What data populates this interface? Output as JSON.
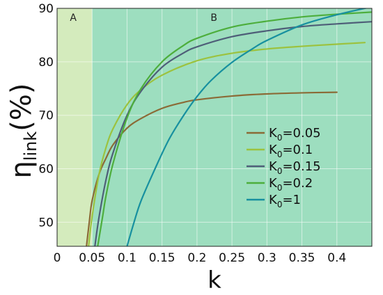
{
  "chart_data": {
    "type": "line",
    "xlabel": "k",
    "ylabel": {
      "main": "η",
      "sub": "link",
      "suffix": "(%)"
    },
    "xlim": [
      0,
      0.45
    ],
    "ylim": [
      45.5,
      90
    ],
    "x_ticks": [
      0,
      0.05,
      0.1,
      0.15,
      0.2,
      0.25,
      0.3,
      0.35,
      0.4
    ],
    "x_tick_labels": [
      "0",
      "0.05",
      "0.1",
      "0.15",
      "0.2",
      "0.25",
      "0.3",
      "0.35",
      "0.4"
    ],
    "y_ticks": [
      50,
      60,
      70,
      80,
      90
    ],
    "y_tick_labels": [
      "50",
      "60",
      "70",
      "80",
      "90"
    ],
    "grid": true,
    "legend_position": "right",
    "regions": [
      {
        "label": "A",
        "x_range": [
          0,
          0.05
        ],
        "color": "#d4ebbd"
      },
      {
        "label": "B",
        "x_range": [
          0.05,
          0.45
        ],
        "color": "#9ddebf"
      }
    ],
    "series": [
      {
        "name": "K0=0.05",
        "legend": {
          "base": "K",
          "sub": "0",
          "rest": "=0.05"
        },
        "color": "#8b6a36",
        "x": [
          0.042,
          0.046,
          0.05,
          0.06,
          0.07,
          0.08,
          0.1,
          0.12,
          0.15,
          0.18,
          0.2,
          0.25,
          0.3,
          0.35,
          0.4
        ],
        "y": [
          45.5,
          50,
          54,
          59,
          62,
          64.5,
          67.6,
          69.4,
          71.3,
          72.4,
          72.9,
          73.6,
          74.0,
          74.2,
          74.3
        ]
      },
      {
        "name": "K0=0.1",
        "legend": {
          "base": "K",
          "sub": "0",
          "rest": "=0.1"
        },
        "color": "#9cc23e",
        "x": [
          0.045,
          0.05,
          0.06,
          0.07,
          0.08,
          0.1,
          0.12,
          0.15,
          0.2,
          0.25,
          0.3,
          0.35,
          0.4,
          0.44
        ],
        "y": [
          45.5,
          51,
          59,
          64,
          67.5,
          72,
          74.8,
          77.5,
          80.2,
          81.6,
          82.4,
          82.9,
          83.3,
          83.6
        ]
      },
      {
        "name": "K0=0.15",
        "legend": {
          "base": "K",
          "sub": "0",
          "rest": "=0.15"
        },
        "color": "#4e5e78",
        "x": [
          0.054,
          0.06,
          0.07,
          0.08,
          0.1,
          0.12,
          0.15,
          0.18,
          0.2,
          0.25,
          0.3,
          0.35,
          0.4,
          0.45
        ],
        "y": [
          45.5,
          51,
          58,
          63,
          70,
          74.5,
          79,
          81.6,
          82.8,
          84.7,
          85.8,
          86.6,
          87.1,
          87.5
        ]
      },
      {
        "name": "K0=0.2",
        "legend": {
          "base": "K",
          "sub": "0",
          "rest": "=0.2"
        },
        "color": "#4dae3c",
        "x": [
          0.058,
          0.065,
          0.07,
          0.08,
          0.1,
          0.12,
          0.15,
          0.18,
          0.2,
          0.25,
          0.3,
          0.35,
          0.4,
          0.45
        ],
        "y": [
          45.5,
          51,
          55,
          61,
          69.5,
          75,
          80,
          83,
          84.4,
          86.5,
          87.6,
          88.4,
          88.9,
          89.3
        ]
      },
      {
        "name": "K0=1",
        "legend": {
          "base": "K",
          "sub": "0",
          "rest": "=1"
        },
        "color": "#17909f",
        "x": [
          0.1,
          0.11,
          0.12,
          0.14,
          0.16,
          0.18,
          0.2,
          0.22,
          0.25,
          0.28,
          0.3,
          0.35,
          0.4,
          0.45
        ],
        "y": [
          45.5,
          50,
          54,
          60,
          65.5,
          69.8,
          73.5,
          76.5,
          79.9,
          82.5,
          84,
          86.9,
          88.8,
          90.3
        ]
      }
    ]
  }
}
